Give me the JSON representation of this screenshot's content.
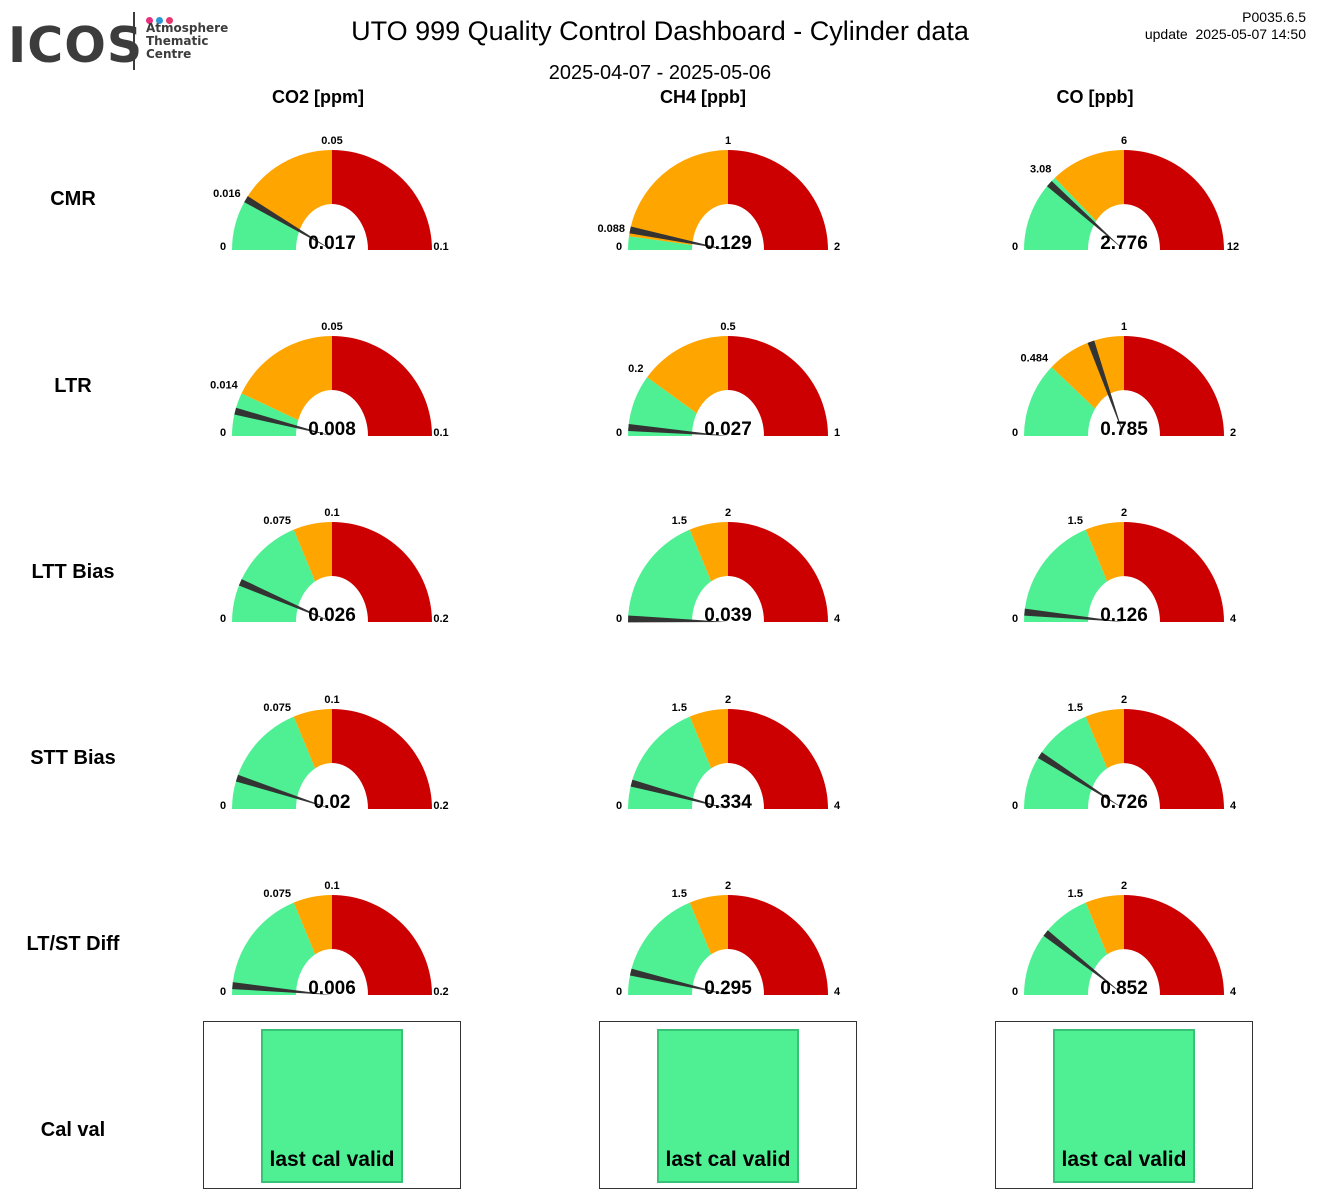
{
  "header": {
    "logo": {
      "word": "ICOS",
      "lines": [
        "Atmosphere",
        "Thematic",
        "Centre"
      ],
      "dot_colors": [
        "#e62f7e",
        "#2b98d6",
        "#e6386f"
      ]
    },
    "title": "UTO 999 Quality Control Dashboard - Cylinder data",
    "subtitle": "2025-04-07 - 2025-05-06",
    "version": "P0035.6.5",
    "update": "update  2025-05-07 14:50"
  },
  "columns": [
    "CO2 [ppm]",
    "CH4 [ppb]",
    "CO [ppb]"
  ],
  "rows": [
    "CMR",
    "LTR",
    "LTT Bias",
    "STT Bias",
    "LT/ST Diff",
    "Cal val"
  ],
  "colors": {
    "green": "#4ff093",
    "orange": "#ffa500",
    "red": "#cc0000",
    "needle": "#333333"
  },
  "chart_data": [
    {
      "type": "gauge",
      "row": "CMR",
      "column": "CO2 [ppm]",
      "value": 0.017,
      "value_label": "0.017",
      "range": [
        0,
        0.1
      ],
      "range_labels": [
        "0",
        "0.1"
      ],
      "green_max": 0.016,
      "green_max_label": "0.016",
      "orange_max": 0.05,
      "orange_max_label": "0.05"
    },
    {
      "type": "gauge",
      "row": "CMR",
      "column": "CH4 [ppb]",
      "value": 0.129,
      "value_label": "0.129",
      "range": [
        0,
        2
      ],
      "range_labels": [
        "0",
        "2"
      ],
      "green_max": 0.088,
      "green_max_label": "0.088",
      "orange_max": 1,
      "orange_max_label": "1"
    },
    {
      "type": "gauge",
      "row": "CMR",
      "column": "CO [ppb]",
      "value": 2.776,
      "value_label": "2.776",
      "range": [
        0,
        12
      ],
      "range_labels": [
        "0",
        "12"
      ],
      "green_max": 3.08,
      "green_max_label": "3.08",
      "orange_max": 6,
      "orange_max_label": "6"
    },
    {
      "type": "gauge",
      "row": "LTR",
      "column": "CO2 [ppm]",
      "value": 0.008,
      "value_label": "0.008",
      "range": [
        0,
        0.1
      ],
      "range_labels": [
        "0",
        "0.1"
      ],
      "green_max": 0.014,
      "green_max_label": "0.014",
      "orange_max": 0.05,
      "orange_max_label": "0.05"
    },
    {
      "type": "gauge",
      "row": "LTR",
      "column": "CH4 [ppb]",
      "value": 0.027,
      "value_label": "0.027",
      "range": [
        0,
        1
      ],
      "range_labels": [
        "0",
        "1"
      ],
      "green_max": 0.2,
      "green_max_label": "0.2",
      "orange_max": 0.5,
      "orange_max_label": "0.5"
    },
    {
      "type": "gauge",
      "row": "LTR",
      "column": "CO [ppb]",
      "value": 0.785,
      "value_label": "0.785",
      "range": [
        0,
        2
      ],
      "range_labels": [
        "0",
        "2"
      ],
      "green_max": 0.484,
      "green_max_label": "0.484",
      "orange_max": 1,
      "orange_max_label": "1"
    },
    {
      "type": "gauge",
      "row": "LTT Bias",
      "column": "CO2 [ppm]",
      "value": 0.026,
      "value_label": "0.026",
      "range": [
        0,
        0.2
      ],
      "range_labels": [
        "0",
        "0.2"
      ],
      "green_max": 0.075,
      "green_max_label": "0.075",
      "orange_max": 0.1,
      "orange_max_label": "0.1"
    },
    {
      "type": "gauge",
      "row": "LTT Bias",
      "column": "CH4 [ppb]",
      "value": 0.039,
      "value_label": "0.039",
      "range": [
        0,
        4
      ],
      "range_labels": [
        "0",
        "4"
      ],
      "green_max": 1.5,
      "green_max_label": "1.5",
      "orange_max": 2,
      "orange_max_label": "2"
    },
    {
      "type": "gauge",
      "row": "LTT Bias",
      "column": "CO [ppb]",
      "value": 0.126,
      "value_label": "0.126",
      "range": [
        0,
        4
      ],
      "range_labels": [
        "0",
        "4"
      ],
      "green_max": 1.5,
      "green_max_label": "1.5",
      "orange_max": 2,
      "orange_max_label": "2"
    },
    {
      "type": "gauge",
      "row": "STT Bias",
      "column": "CO2 [ppm]",
      "value": 0.02,
      "value_label": "0.02",
      "range": [
        0,
        0.2
      ],
      "range_labels": [
        "0",
        "0.2"
      ],
      "green_max": 0.075,
      "green_max_label": "0.075",
      "orange_max": 0.1,
      "orange_max_label": "0.1"
    },
    {
      "type": "gauge",
      "row": "STT Bias",
      "column": "CH4 [ppb]",
      "value": 0.334,
      "value_label": "0.334",
      "range": [
        0,
        4
      ],
      "range_labels": [
        "0",
        "4"
      ],
      "green_max": 1.5,
      "green_max_label": "1.5",
      "orange_max": 2,
      "orange_max_label": "2"
    },
    {
      "type": "gauge",
      "row": "STT Bias",
      "column": "CO [ppb]",
      "value": 0.726,
      "value_label": "0.726",
      "range": [
        0,
        4
      ],
      "range_labels": [
        "0",
        "4"
      ],
      "green_max": 1.5,
      "green_max_label": "1.5",
      "orange_max": 2,
      "orange_max_label": "2"
    },
    {
      "type": "gauge",
      "row": "LT/ST Diff",
      "column": "CO2 [ppm]",
      "value": 0.006,
      "value_label": "0.006",
      "range": [
        0,
        0.2
      ],
      "range_labels": [
        "0",
        "0.2"
      ],
      "green_max": 0.075,
      "green_max_label": "0.075",
      "orange_max": 0.1,
      "orange_max_label": "0.1"
    },
    {
      "type": "gauge",
      "row": "LT/ST Diff",
      "column": "CH4 [ppb]",
      "value": 0.295,
      "value_label": "0.295",
      "range": [
        0,
        4
      ],
      "range_labels": [
        "0",
        "4"
      ],
      "green_max": 1.5,
      "green_max_label": "1.5",
      "orange_max": 2,
      "orange_max_label": "2"
    },
    {
      "type": "gauge",
      "row": "LT/ST Diff",
      "column": "CO [ppb]",
      "value": 0.852,
      "value_label": "0.852",
      "range": [
        0,
        4
      ],
      "range_labels": [
        "0",
        "4"
      ],
      "green_max": 1.5,
      "green_max_label": "1.5",
      "orange_max": 2,
      "orange_max_label": "2"
    }
  ],
  "cal_status": [
    {
      "column": "CO2 [ppm]",
      "text": "last cal valid",
      "color": "#4ff093"
    },
    {
      "column": "CH4 [ppb]",
      "text": "last cal valid",
      "color": "#4ff093"
    },
    {
      "column": "CO [ppb]",
      "text": "last cal valid",
      "color": "#4ff093"
    }
  ]
}
